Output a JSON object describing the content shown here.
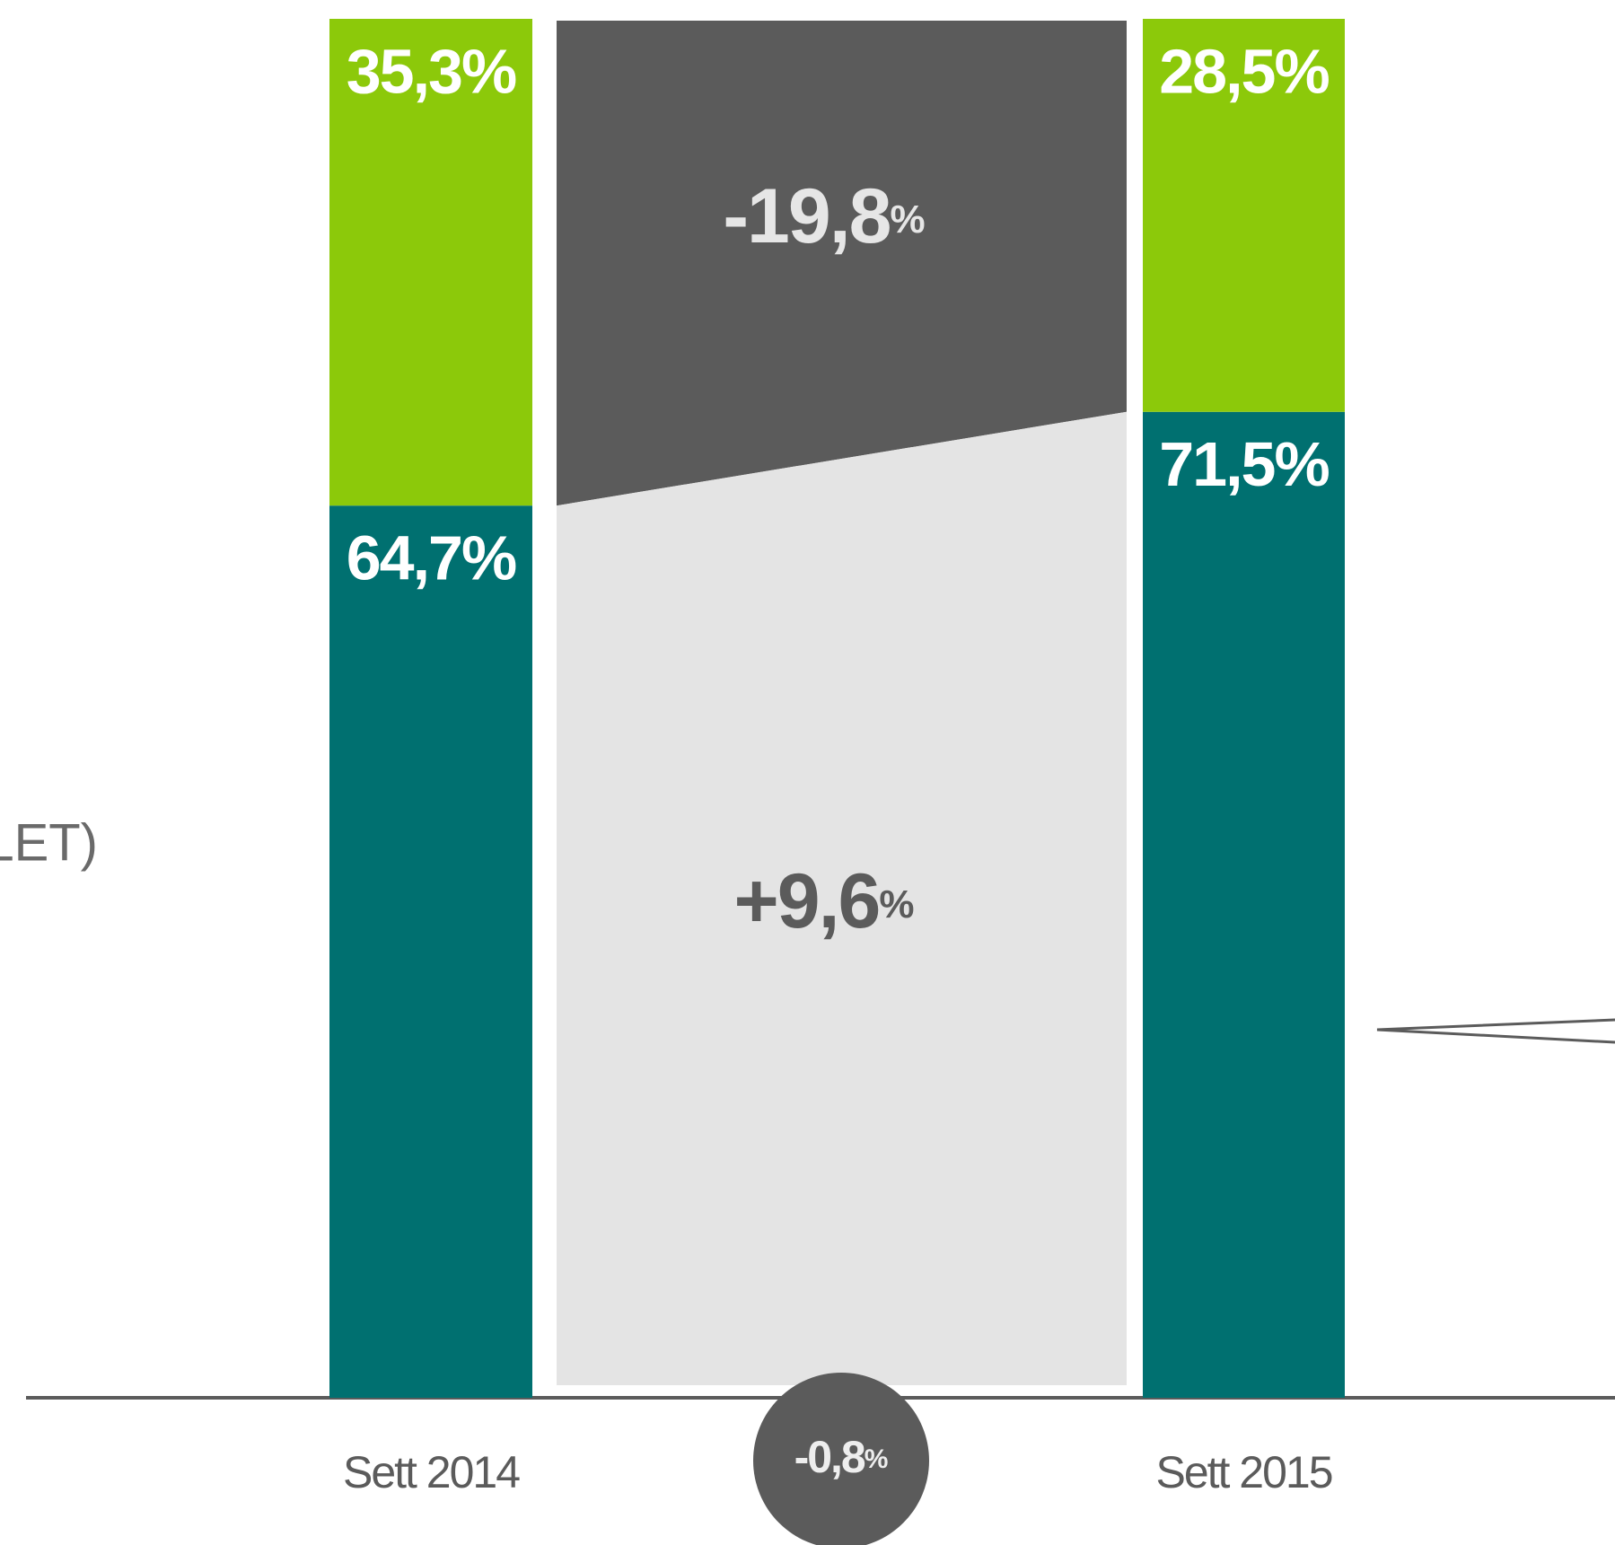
{
  "chart_data": {
    "type": "stacked_bar",
    "categories": [
      "Sett 2014",
      "Sett 2015"
    ],
    "series": [
      {
        "color": "#007070",
        "values": [
          64.7,
          71.5
        ],
        "value_labels": [
          "64,7%",
          "71,5%"
        ]
      },
      {
        "color": "#8cc90a",
        "values": [
          35.3,
          28.5
        ],
        "value_labels": [
          "35,3%",
          "28,5%"
        ]
      }
    ],
    "ylim": [
      0,
      100
    ],
    "changes": [
      {
        "label": "-19,8",
        "unit": "%",
        "fill": "#5b5b5b",
        "text_color": "#e6e6e6"
      },
      {
        "label": "+9,6",
        "unit": "%",
        "fill": "#e4e4e4",
        "text_color": "#5b5b5b"
      }
    ],
    "total_change": {
      "label": "-0,8",
      "unit": "%",
      "fill": "#5b5b5b",
      "text_color": "#eeeeee"
    },
    "side_label": "LET)"
  }
}
